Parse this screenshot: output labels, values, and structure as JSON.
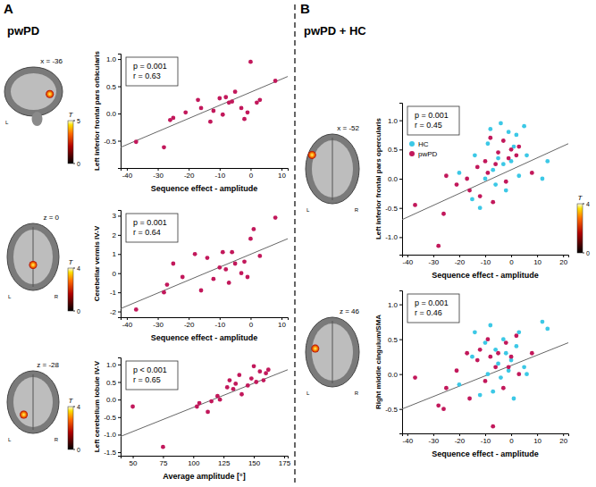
{
  "figure": {
    "panels": [
      {
        "letter": "A",
        "title": "pwPD"
      },
      {
        "letter": "B",
        "title": "pwPD + HC"
      }
    ]
  },
  "chart_data": [
    {
      "type": "scatter",
      "x_label": "Sequence effect - amplitude",
      "y_label": "Left inferior frontal pars orbicularis",
      "xlim": [
        -42,
        12
      ],
      "xticks": [
        -40,
        -30,
        -20,
        -10,
        0,
        10
      ],
      "ylim": [
        -1.0,
        1.1
      ],
      "yticks": [
        -0.5,
        {
          "value": 0,
          "label": "0.0"
        },
        0.5,
        {
          "value": 1,
          "label": "1.0"
        }
      ],
      "grid": false,
      "annotations": [
        "p = 0.001",
        "r = 0.63"
      ],
      "series": [
        {
          "color": "#c2185b",
          "marker": "circle",
          "x": [
            -37,
            -28,
            -26,
            -25,
            -21,
            -17,
            -16,
            -13,
            -12,
            -10,
            -9,
            -8,
            -7,
            -6,
            -5,
            -3,
            -2,
            -1,
            0,
            2,
            3,
            8
          ],
          "values": [
            -0.52,
            -0.62,
            -0.12,
            -0.08,
            0.02,
            0.25,
            0.1,
            -0.15,
            0.05,
            0.28,
            -0.02,
            0.3,
            0.2,
            0.22,
            0.4,
            0.1,
            -0.1,
            0.02,
            0.95,
            0.2,
            0.25,
            0.6
          ]
        }
      ],
      "trend": {
        "x": [
          -42,
          12
        ],
        "y": [
          -0.62,
          0.68
        ]
      },
      "brain": {
        "slice_label": "x = -36",
        "side_labels": [
          "L"
        ],
        "colorbar": {
          "title": "T",
          "range": [
            0,
            5
          ],
          "ticks": [
            0,
            5
          ]
        }
      }
    },
    {
      "type": "scatter",
      "x_label": "Sequence effect - amplitude",
      "y_label": "Cerebellar vermis IV-V",
      "xlim": [
        -42,
        12
      ],
      "xticks": [
        -40,
        -30,
        -20,
        -10,
        0,
        10
      ],
      "ylim": [
        -2.3,
        3.3
      ],
      "yticks": [
        -2,
        -1,
        0,
        1,
        2,
        3
      ],
      "grid": false,
      "annotations": [
        "p = 0.001",
        "r = 0.64"
      ],
      "series": [
        {
          "color": "#c2185b",
          "marker": "circle",
          "x": [
            -37,
            -28,
            -27,
            -25,
            -22,
            -18,
            -16,
            -14,
            -12,
            -10,
            -9,
            -8,
            -7,
            -6,
            -5,
            -3,
            -2,
            -1,
            0,
            1,
            3,
            8
          ],
          "values": [
            -1.9,
            -1.0,
            -0.6,
            0.5,
            -0.2,
            1.0,
            -0.9,
            0.8,
            -0.3,
            0.3,
            1.1,
            0.2,
            -0.5,
            1.1,
            0.5,
            0.0,
            0.6,
            -0.2,
            1.8,
            2.3,
            0.9,
            2.9
          ]
        }
      ],
      "trend": {
        "x": [
          -42,
          12
        ],
        "y": [
          -1.85,
          1.8
        ]
      },
      "brain": {
        "slice_label": "z = 0",
        "side_labels": [
          "L",
          "R"
        ],
        "colorbar": {
          "title": "T",
          "range": [
            0,
            4
          ],
          "ticks": [
            0,
            4
          ]
        }
      }
    },
    {
      "type": "scatter",
      "x_label": "Average amplitude [°]",
      "y_label": "Left cerebellum lobule IV-V",
      "xlim": [
        40,
        178
      ],
      "xticks": [
        50,
        75,
        100,
        125,
        150,
        175
      ],
      "ylim": [
        -1.6,
        1.2
      ],
      "yticks": [
        -1.5,
        {
          "value": -1,
          "label": "-1.0"
        },
        -0.5,
        {
          "value": 0,
          "label": "0.0"
        },
        0.5,
        {
          "value": 1,
          "label": "1.0"
        }
      ],
      "grid": false,
      "annotations": [
        "p < 0.001",
        "r = 0.65"
      ],
      "series": [
        {
          "color": "#c2185b",
          "marker": "circle",
          "x": [
            50,
            75,
            103,
            105,
            112,
            115,
            120,
            122,
            128,
            130,
            133,
            135,
            138,
            140,
            145,
            148,
            150,
            152,
            155,
            158,
            160,
            162
          ],
          "values": [
            -0.2,
            -1.35,
            -0.2,
            -0.1,
            -0.35,
            -0.05,
            0.1,
            0.0,
            0.35,
            0.55,
            0.3,
            0.45,
            0.7,
            0.15,
            0.4,
            0.6,
            0.95,
            0.5,
            0.8,
            0.55,
            0.75,
            0.85
          ]
        }
      ],
      "trend": {
        "x": [
          40,
          178
        ],
        "y": [
          -1.05,
          0.85
        ]
      },
      "brain": {
        "slice_label": "z = -28",
        "side_labels": [
          "L",
          "R"
        ],
        "colorbar": {
          "title": "T",
          "range": [
            0,
            4
          ],
          "ticks": [
            0,
            4
          ]
        }
      }
    },
    {
      "type": "scatter",
      "x_label": "Sequence effect - amplitude",
      "y_label": "Left inferior frontal pars opercularis",
      "xlim": [
        -42,
        22
      ],
      "xticks": [
        -40,
        -30,
        -20,
        -10,
        0,
        10,
        20
      ],
      "ylim": [
        -1.3,
        1.3
      ],
      "yticks": [
        {
          "value": -1,
          "label": "-1.0"
        },
        -0.5,
        {
          "value": 0,
          "label": "0.0"
        },
        0.5,
        {
          "value": 1,
          "label": "1.0"
        }
      ],
      "grid": false,
      "legend": "left",
      "annotations": [
        "p = 0.001",
        "r = 0.45"
      ],
      "series": [
        {
          "name": "HC",
          "color": "#3cc8e6",
          "marker": "circle",
          "x": [
            -20,
            -15,
            -14,
            -12,
            -10,
            -9,
            -8,
            -7,
            -6,
            -5,
            -4,
            -3,
            -2,
            -1,
            0,
            1,
            2,
            3,
            5,
            6,
            12,
            14
          ],
          "values": [
            0.1,
            -0.35,
            0.4,
            -0.5,
            0.0,
            0.6,
            0.85,
            0.15,
            -0.1,
            0.35,
            0.95,
            0.25,
            -0.2,
            0.8,
            0.3,
            0.55,
            0.75,
            0.05,
            0.9,
            0.4,
            0.0,
            0.3
          ]
        },
        {
          "name": "pwPD",
          "color": "#c2185b",
          "marker": "circle",
          "x": [
            -37,
            -28,
            -26,
            -25,
            -21,
            -17,
            -16,
            -13,
            -12,
            -10,
            -9,
            -8,
            -7,
            -6,
            -5,
            -3,
            -2,
            -1,
            0,
            2,
            3,
            8
          ],
          "values": [
            -0.45,
            -1.15,
            -0.6,
            0.05,
            -0.1,
            0.0,
            -0.2,
            0.2,
            -0.3,
            0.3,
            0.1,
            0.7,
            -0.4,
            0.25,
            0.45,
            0.65,
            -0.05,
            0.35,
            0.5,
            0.4,
            0.55,
            0.1
          ]
        }
      ],
      "trend": {
        "x": [
          -42,
          22
        ],
        "y": [
          -0.7,
          0.6
        ]
      },
      "brain": {
        "slice_label": "x = -52",
        "side_labels": [
          "L",
          "R"
        ],
        "colorbar": {
          "title": "T",
          "range": [
            0,
            4
          ],
          "ticks": [
            0,
            4
          ]
        }
      }
    },
    {
      "type": "scatter",
      "x_label": "Sequence effect - amplitude",
      "y_label": "Right middle cingulum/SMA",
      "xlim": [
        -42,
        22
      ],
      "xticks": [
        -40,
        -30,
        -20,
        -10,
        0,
        10,
        20
      ],
      "ylim": [
        -0.85,
        1.2
      ],
      "yticks": [
        -0.5,
        {
          "value": 0,
          "label": "0.0"
        },
        0.5,
        {
          "value": 1,
          "label": "1.0"
        }
      ],
      "grid": false,
      "annotations": [
        "p = 0.001",
        "r = 0.46"
      ],
      "series": [
        {
          "color": "#3cc8e6",
          "marker": "circle",
          "x": [
            -20,
            -15,
            -14,
            -12,
            -10,
            -9,
            -8,
            -7,
            -6,
            -5,
            -4,
            -3,
            -2,
            -1,
            0,
            1,
            2,
            3,
            5,
            6,
            12,
            14
          ],
          "values": [
            -0.15,
            0.25,
            0.6,
            -0.3,
            0.45,
            0.0,
            0.7,
            -0.25,
            0.35,
            0.15,
            -0.05,
            0.5,
            0.3,
            0.05,
            0.2,
            -0.35,
            0.4,
            0.6,
            0.1,
            0.0,
            0.75,
            0.65
          ]
        },
        {
          "color": "#c2185b",
          "marker": "circle",
          "x": [
            -37,
            -28,
            -26,
            -25,
            -21,
            -17,
            -16,
            -13,
            -12,
            -10,
            -9,
            -8,
            -7,
            -6,
            -5,
            -3,
            -2,
            -1,
            0,
            2,
            3,
            8
          ],
          "values": [
            -0.05,
            -0.45,
            -0.5,
            -0.2,
            0.05,
            0.3,
            -0.35,
            0.2,
            0.35,
            -0.1,
            0.5,
            0.25,
            -0.75,
            0.1,
            0.3,
            -0.2,
            0.45,
            0.1,
            0.25,
            0.55,
            0.0,
            0.3
          ]
        }
      ],
      "trend": {
        "x": [
          -42,
          22
        ],
        "y": [
          -0.5,
          0.45
        ]
      },
      "brain": {
        "slice_label": "z = 46",
        "side_labels": [
          "L",
          "R"
        ]
      }
    }
  ]
}
